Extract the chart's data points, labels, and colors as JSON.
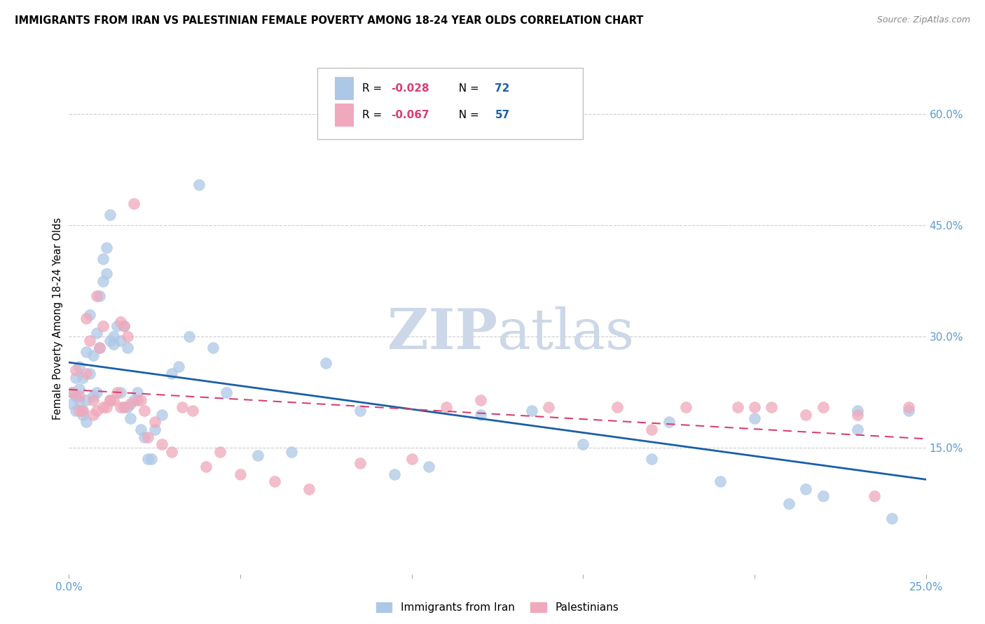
{
  "title": "IMMIGRANTS FROM IRAN VS PALESTINIAN FEMALE POVERTY AMONG 18-24 YEAR OLDS CORRELATION CHART",
  "source": "Source: ZipAtlas.com",
  "ylabel": "Female Poverty Among 18-24 Year Olds",
  "right_yticks": [
    "60.0%",
    "45.0%",
    "30.0%",
    "15.0%"
  ],
  "right_ytick_values": [
    0.6,
    0.45,
    0.3,
    0.15
  ],
  "xlim": [
    0.0,
    0.25
  ],
  "ylim": [
    -0.02,
    0.67
  ],
  "iran_R": -0.028,
  "iran_N": 72,
  "pal_R": -0.067,
  "pal_N": 57,
  "iran_color": "#adc8e6",
  "pal_color": "#f0a8bc",
  "iran_line_color": "#1a5fa8",
  "pal_line_color": "#d94070",
  "watermark_color": "#ccd8e8",
  "background_color": "#ffffff",
  "grid_color": "#cccccc",
  "right_axis_color": "#5b9bd5",
  "iran_scatter_x": [
    0.001,
    0.001,
    0.002,
    0.002,
    0.002,
    0.003,
    0.003,
    0.003,
    0.004,
    0.004,
    0.004,
    0.005,
    0.005,
    0.005,
    0.006,
    0.006,
    0.007,
    0.007,
    0.008,
    0.008,
    0.009,
    0.009,
    0.01,
    0.01,
    0.011,
    0.011,
    0.012,
    0.012,
    0.013,
    0.013,
    0.014,
    0.015,
    0.015,
    0.016,
    0.016,
    0.017,
    0.017,
    0.018,
    0.019,
    0.02,
    0.021,
    0.022,
    0.023,
    0.024,
    0.025,
    0.027,
    0.03,
    0.032,
    0.035,
    0.038,
    0.042,
    0.046,
    0.055,
    0.065,
    0.075,
    0.085,
    0.095,
    0.105,
    0.12,
    0.135,
    0.15,
    0.17,
    0.19,
    0.21,
    0.22,
    0.23,
    0.175,
    0.2,
    0.215,
    0.23,
    0.24,
    0.245
  ],
  "iran_scatter_y": [
    0.21,
    0.225,
    0.22,
    0.245,
    0.2,
    0.215,
    0.26,
    0.23,
    0.2,
    0.245,
    0.195,
    0.28,
    0.215,
    0.185,
    0.25,
    0.33,
    0.275,
    0.22,
    0.305,
    0.225,
    0.355,
    0.285,
    0.405,
    0.375,
    0.385,
    0.42,
    0.465,
    0.295,
    0.3,
    0.29,
    0.315,
    0.295,
    0.225,
    0.205,
    0.315,
    0.285,
    0.205,
    0.19,
    0.215,
    0.225,
    0.175,
    0.165,
    0.135,
    0.135,
    0.175,
    0.195,
    0.25,
    0.26,
    0.3,
    0.505,
    0.285,
    0.225,
    0.14,
    0.145,
    0.265,
    0.2,
    0.115,
    0.125,
    0.195,
    0.2,
    0.155,
    0.135,
    0.105,
    0.075,
    0.085,
    0.2,
    0.185,
    0.19,
    0.095,
    0.175,
    0.055,
    0.2
  ],
  "pal_scatter_x": [
    0.001,
    0.002,
    0.003,
    0.003,
    0.004,
    0.005,
    0.005,
    0.006,
    0.007,
    0.007,
    0.008,
    0.008,
    0.009,
    0.01,
    0.01,
    0.011,
    0.012,
    0.012,
    0.013,
    0.014,
    0.015,
    0.015,
    0.016,
    0.016,
    0.017,
    0.018,
    0.019,
    0.02,
    0.021,
    0.022,
    0.023,
    0.025,
    0.027,
    0.03,
    0.033,
    0.036,
    0.04,
    0.044,
    0.05,
    0.06,
    0.07,
    0.085,
    0.1,
    0.12,
    0.14,
    0.16,
    0.18,
    0.2,
    0.215,
    0.23,
    0.235,
    0.245,
    0.11,
    0.17,
    0.195,
    0.205,
    0.22
  ],
  "pal_scatter_y": [
    0.225,
    0.255,
    0.22,
    0.2,
    0.2,
    0.325,
    0.25,
    0.295,
    0.215,
    0.195,
    0.2,
    0.355,
    0.285,
    0.315,
    0.205,
    0.205,
    0.215,
    0.215,
    0.215,
    0.225,
    0.32,
    0.205,
    0.205,
    0.315,
    0.3,
    0.21,
    0.48,
    0.215,
    0.215,
    0.2,
    0.165,
    0.185,
    0.155,
    0.145,
    0.205,
    0.2,
    0.125,
    0.145,
    0.115,
    0.105,
    0.095,
    0.13,
    0.135,
    0.215,
    0.205,
    0.205,
    0.205,
    0.205,
    0.195,
    0.195,
    0.085,
    0.205,
    0.205,
    0.175,
    0.205,
    0.205,
    0.205
  ],
  "legend_iran_text": "R = -0.028   N = 72",
  "legend_pal_text": "R = -0.067   N = 57",
  "bottom_legend_iran": "Immigrants from Iran",
  "bottom_legend_pal": "Palestinians"
}
